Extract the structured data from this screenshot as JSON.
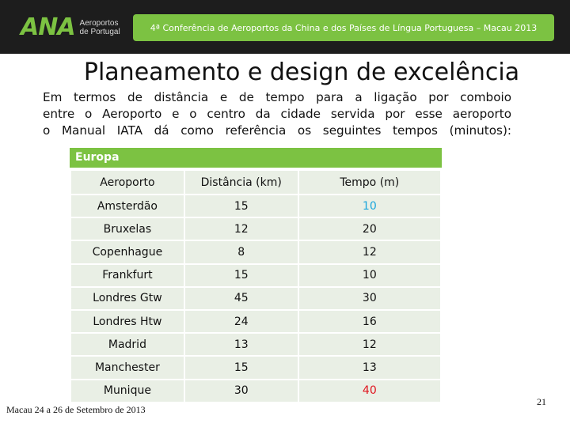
{
  "logo": {
    "mark": "ANA",
    "line1": "Aeroportos",
    "line2": "de Portugal"
  },
  "banner": {
    "text": "4ª Conferência de Aeroportos da China e dos Países de Língua Portuguesa – Macau 2013"
  },
  "slide": {
    "title": "Planeamento e design de excelência",
    "intro_lines": [
      "Em termos de distância e de tempo para a ligação por comboio",
      "entre o Aeroporto e o centro da cidade servida por esse aeroporto",
      "o Manual IATA dá como referência os seguintes tempos (minutos):"
    ]
  },
  "table": {
    "region": "Europa",
    "headers": [
      "Aeroporto",
      "Distância (km)",
      "Tempo (m)"
    ],
    "rows": [
      {
        "airport": "Amsterdão",
        "distance": "15",
        "time": "10",
        "time_color": "#1aa6dc"
      },
      {
        "airport": "Bruxelas",
        "distance": "12",
        "time": "20",
        "time_color": "#111111"
      },
      {
        "airport": "Copenhague",
        "distance": "8",
        "time": "12",
        "time_color": "#111111"
      },
      {
        "airport": "Frankfurt",
        "distance": "15",
        "time": "10",
        "time_color": "#111111"
      },
      {
        "airport": "Londres Gtw",
        "distance": "45",
        "time": "30",
        "time_color": "#111111"
      },
      {
        "airport": "Londres Htw",
        "distance": "24",
        "time": "16",
        "time_color": "#111111"
      },
      {
        "airport": "Madrid",
        "distance": "13",
        "time": "12",
        "time_color": "#111111"
      },
      {
        "airport": "Manchester",
        "distance": "15",
        "time": "13",
        "time_color": "#111111"
      },
      {
        "airport": "Munique",
        "distance": "30",
        "time": "40",
        "time_color": "#e0141e"
      }
    ]
  },
  "footer": {
    "date_text": "Macau 24 a 26 de Setembro de 2013",
    "page_number": "21"
  },
  "colors": {
    "accent_green": "#7cc242",
    "topbar": "#1d1d1d",
    "cell_bg": "#e9efe5"
  }
}
